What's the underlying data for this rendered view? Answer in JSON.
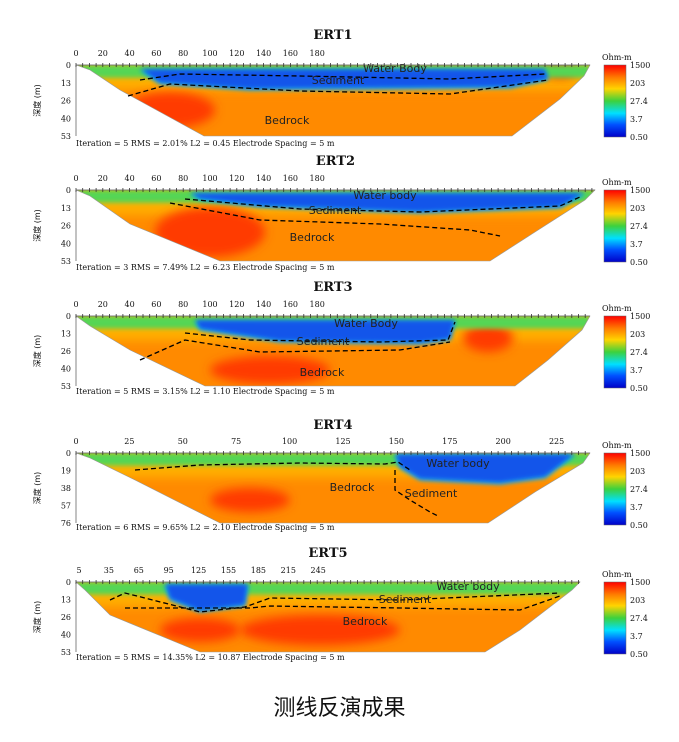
{
  "figure_caption": "测线反演成果",
  "colorbar": {
    "unit": "Ohm-m",
    "tick_labels": [
      "1500",
      "203",
      "27.4",
      "3.7",
      "0.50"
    ],
    "colors": [
      "#ff0000",
      "#ff7a00",
      "#ffd400",
      "#3dd13d",
      "#00e0ff",
      "#0050ff",
      "#0000c8"
    ]
  },
  "chart_data": [
    {
      "type": "heatmap",
      "title": "ERT1",
      "ylabel": "深度 (m)",
      "x_ticks": [
        "0",
        "20",
        "40",
        "60",
        "80",
        "100",
        "120",
        "140",
        "160",
        "180"
      ],
      "y_ticks": [
        "0",
        "13",
        "26",
        "40",
        "53"
      ],
      "x_range": [
        0,
        195
      ],
      "depth_range": [
        0,
        53
      ],
      "labels": [
        "Water Body",
        "Sediment",
        "Bedrock"
      ],
      "stats": "Iteration = 5    RMS = 2.01%    L2 = 0.45    Electrode Spacing = 5 m"
    },
    {
      "type": "heatmap",
      "title": "ERT2",
      "ylabel": "深度 (m)",
      "x_ticks": [
        "0",
        "20",
        "40",
        "60",
        "80",
        "100",
        "120",
        "140",
        "160",
        "180"
      ],
      "y_ticks": [
        "0",
        "13",
        "26",
        "40",
        "53"
      ],
      "x_range": [
        0,
        195
      ],
      "depth_range": [
        0,
        53
      ],
      "labels": [
        "Water body",
        "Sediment",
        "Bedrock"
      ],
      "stats": "Iteration = 3    RMS = 7.49%    L2 = 6.23    Electrode Spacing = 5 m"
    },
    {
      "type": "heatmap",
      "title": "ERT3",
      "ylabel": "深度 (m)",
      "x_ticks": [
        "0",
        "20",
        "40",
        "60",
        "80",
        "100",
        "120",
        "140",
        "160",
        "180"
      ],
      "y_ticks": [
        "0",
        "13",
        "26",
        "40",
        "53"
      ],
      "x_range": [
        0,
        195
      ],
      "depth_range": [
        0,
        53
      ],
      "labels": [
        "Water Body",
        "Sediment",
        "Bedrock"
      ],
      "stats": "Iteration = 5    RMS = 3.15%    L2 = 1.10    Electrode Spacing = 5 m"
    },
    {
      "type": "heatmap",
      "title": "ERT4",
      "ylabel": "深度 (m)",
      "x_ticks": [
        "0",
        "25",
        "50",
        "75",
        "100",
        "125",
        "150",
        "175",
        "200",
        "225"
      ],
      "y_ticks": [
        "0",
        "19",
        "38",
        "57",
        "76"
      ],
      "x_range": [
        0,
        240
      ],
      "depth_range": [
        0,
        76
      ],
      "labels": [
        "Water body",
        "Sediment",
        "Bedrock"
      ],
      "stats": "Iteration = 6    RMS = 9.65%    L2 = 2.10    Electrode Spacing = 5 m"
    },
    {
      "type": "heatmap",
      "title": "ERT5",
      "ylabel": "深度 (m)",
      "x_ticks": [
        "5",
        "35",
        "65",
        "95",
        "125",
        "155",
        "185",
        "215",
        "245"
      ],
      "y_ticks": [
        "0",
        "13",
        "26",
        "40",
        "53"
      ],
      "x_range": [
        5,
        270
      ],
      "depth_range": [
        0,
        53
      ],
      "labels": [
        "Water body",
        "Sediment",
        "Bedrock"
      ],
      "stats": "Iteration = 5    RMS = 14.35%    L2 = 10.87    Electrode Spacing = 5 m"
    }
  ]
}
